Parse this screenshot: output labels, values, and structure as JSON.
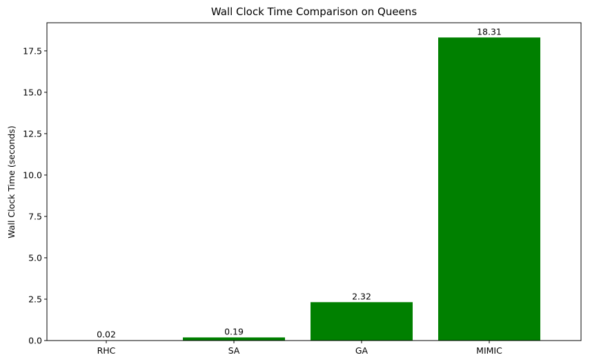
{
  "chart_data": {
    "type": "bar",
    "title": "Wall Clock Time Comparison on Queens",
    "xlabel": "",
    "ylabel": "Wall Clock Time (seconds)",
    "categories": [
      "RHC",
      "SA",
      "GA",
      "MIMIC"
    ],
    "values": [
      0.02,
      0.19,
      2.32,
      18.31
    ],
    "data_labels": [
      "0.02",
      "0.19",
      "2.32",
      "18.31"
    ],
    "ylim": [
      0,
      19.2
    ],
    "yticks": [
      0.0,
      2.5,
      5.0,
      7.5,
      10.0,
      12.5,
      15.0,
      17.5
    ],
    "ytick_labels": [
      "0.0",
      "2.5",
      "5.0",
      "7.5",
      "10.0",
      "12.5",
      "15.0",
      "17.5"
    ],
    "bar_color": "#008000",
    "grid": false,
    "legend": "none"
  }
}
